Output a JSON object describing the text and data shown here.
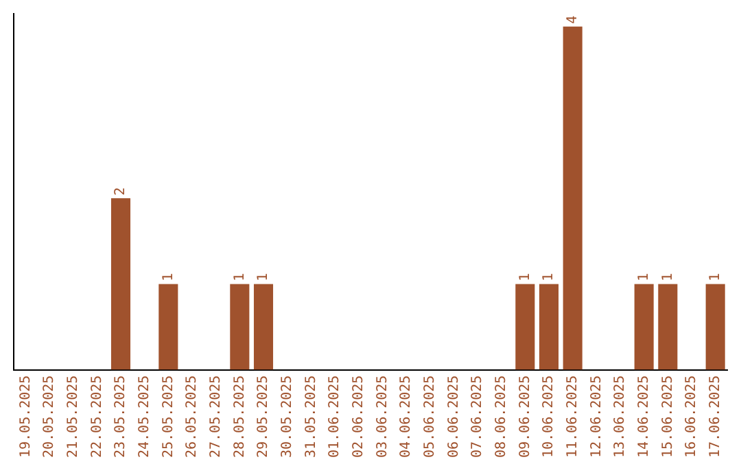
{
  "chart_data": {
    "type": "bar",
    "categories": [
      "19.05.2025",
      "20.05.2025",
      "21.05.2025",
      "22.05.2025",
      "23.05.2025",
      "24.05.2025",
      "25.05.2025",
      "26.05.2025",
      "27.05.2025",
      "28.05.2025",
      "29.05.2025",
      "30.05.2025",
      "31.05.2025",
      "01.06.2025",
      "02.06.2025",
      "03.06.2025",
      "04.06.2025",
      "05.06.2025",
      "06.06.2025",
      "07.06.2025",
      "08.06.2025",
      "09.06.2025",
      "10.06.2025",
      "11.06.2025",
      "12.06.2025",
      "13.06.2025",
      "14.06.2025",
      "15.06.2025",
      "16.06.2025",
      "17.06.2025"
    ],
    "values": [
      0,
      0,
      0,
      0,
      2,
      0,
      1,
      0,
      0,
      1,
      1,
      0,
      0,
      0,
      0,
      0,
      0,
      0,
      0,
      0,
      0,
      1,
      1,
      4,
      0,
      0,
      1,
      1,
      0,
      1
    ],
    "value_labels": [
      null,
      null,
      null,
      null,
      "2",
      null,
      "1",
      null,
      null,
      "1",
      "1",
      null,
      null,
      null,
      null,
      null,
      null,
      null,
      null,
      null,
      null,
      "1",
      "1",
      "4",
      null,
      null,
      "1",
      "1",
      null,
      "1"
    ],
    "color": "#a0522d",
    "ylim": [
      0,
      4.15
    ],
    "tick_labels": "x",
    "grid": false,
    "legend": false
  }
}
